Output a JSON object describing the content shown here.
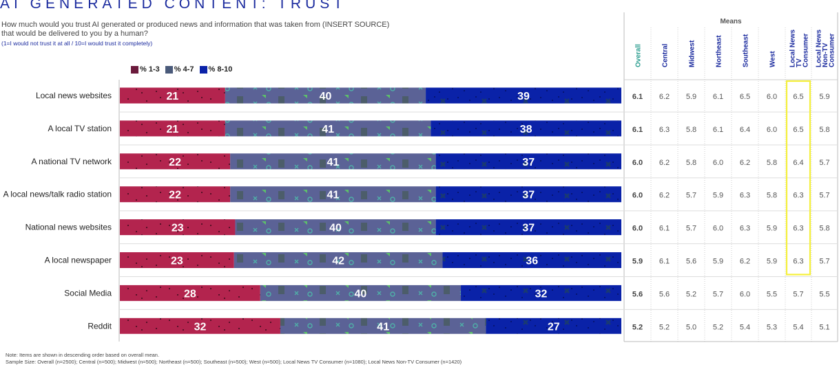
{
  "page": {
    "title": "AI GENERATED CONTENT: TRUST",
    "question": "How much would you trust AI generated or produced news and information that was taken from (INSERT SOURCE) that would be delivered to you by a human?",
    "scale_note": "(1=I would not trust it at all / 10=I would trust it completely)",
    "footnote_order": "Note: Items are shown in descending order based on overall mean.",
    "footnote_sample": "Sample Size: Overall (n=2500); Central (n=500); Midwest (n=500); Northeast (n=500); Southeast (n=500); West (n=500); Local News TV Consumer (n=1080); Local News Non-TV Consumer (n=1420)"
  },
  "colors": {
    "low": "#b3244e",
    "mid": "#5b6296",
    "high": "#0a22a8",
    "title": "#1a2a9e",
    "highlight": "#f5f03a",
    "overall_header": "#2a9d8f"
  },
  "legend": [
    {
      "label": "% 1-3",
      "color": "#6b1a3c"
    },
    {
      "label": "% 4-7",
      "color": "#4a5a7a"
    },
    {
      "label": "% 8-10",
      "color": "#0a22a8"
    }
  ],
  "chart_data": {
    "type": "bar",
    "stacked": true,
    "orientation": "horizontal",
    "units": "percent",
    "categories": [
      "Local news websites",
      "A local TV station",
      "A national TV network",
      "A local news/talk radio station",
      "National news websites",
      "A local newspaper",
      "Social Media",
      "Reddit"
    ],
    "series": [
      {
        "name": "% 1-3",
        "values": [
          21,
          21,
          22,
          22,
          23,
          23,
          28,
          32
        ]
      },
      {
        "name": "% 4-7",
        "values": [
          40,
          41,
          41,
          41,
          40,
          42,
          40,
          41
        ]
      },
      {
        "name": "% 8-10",
        "values": [
          39,
          38,
          37,
          37,
          37,
          36,
          32,
          27
        ]
      }
    ],
    "means_title": "Means",
    "means_columns": [
      "Overall",
      "Central",
      "Midwest",
      "Northeast",
      "Southeast",
      "West",
      "Local News TV Consumer",
      "Local News Non-TV Consumer"
    ],
    "means": [
      [
        6.1,
        6.2,
        5.9,
        6.1,
        6.5,
        6.0,
        6.5,
        5.9
      ],
      [
        6.1,
        6.3,
        5.8,
        6.1,
        6.4,
        6.0,
        6.5,
        5.8
      ],
      [
        6.0,
        6.2,
        5.8,
        6.0,
        6.2,
        5.8,
        6.4,
        5.7
      ],
      [
        6.0,
        6.2,
        5.7,
        5.9,
        6.3,
        5.8,
        6.3,
        5.7
      ],
      [
        6.0,
        6.1,
        5.7,
        6.0,
        6.3,
        5.9,
        6.3,
        5.8
      ],
      [
        5.9,
        6.1,
        5.6,
        5.9,
        6.2,
        5.9,
        6.3,
        5.7
      ],
      [
        5.6,
        5.6,
        5.2,
        5.7,
        6.0,
        5.5,
        5.7,
        5.5
      ],
      [
        5.2,
        5.2,
        5.0,
        5.2,
        5.4,
        5.3,
        5.4,
        5.1
      ]
    ],
    "highlighted_rows_in_column": {
      "column": "Local News TV Consumer",
      "rows": [
        0,
        1,
        2,
        3,
        4,
        5
      ]
    }
  }
}
